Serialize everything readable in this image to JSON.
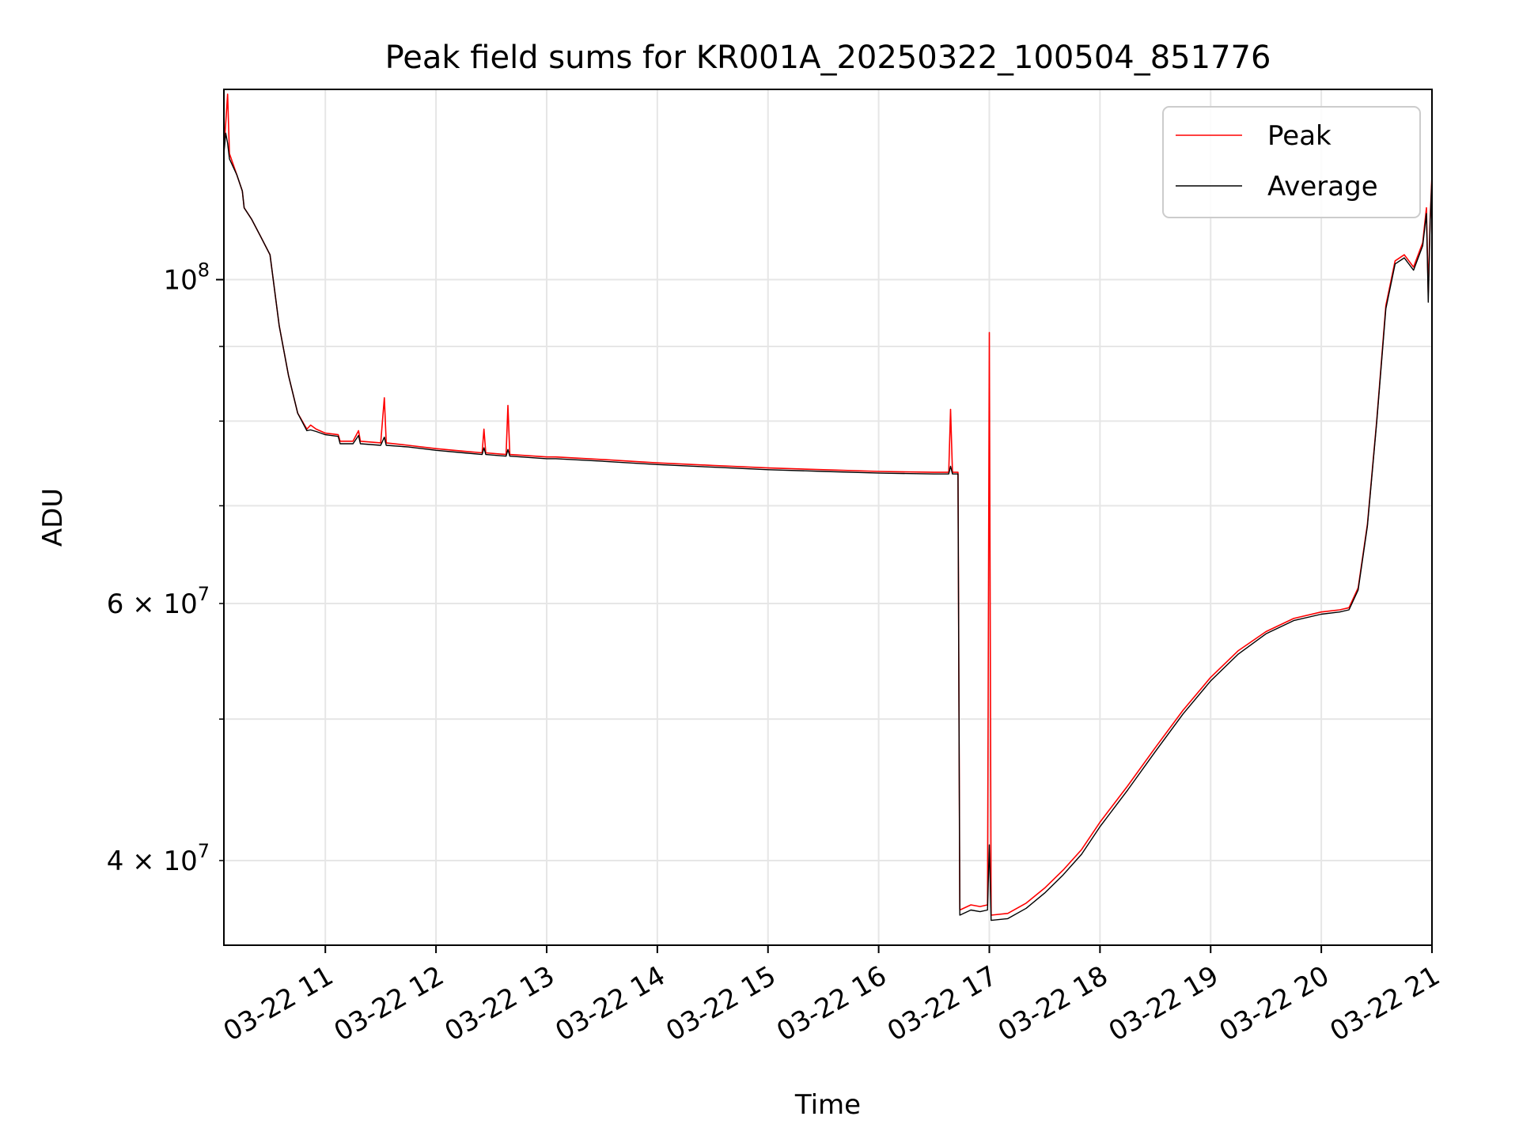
{
  "chart_data": {
    "type": "line",
    "title": "Peak field sums for KR001A_20250322_100504_851776",
    "xlabel": "Time",
    "ylabel": "ADU",
    "yscale": "log",
    "xlim": [
      "03-22 10:05",
      "03-22 21:00"
    ],
    "ylim": [
      35000000,
      135000000
    ],
    "x_ticks": [
      "03-22 11",
      "03-22 12",
      "03-22 13",
      "03-22 14",
      "03-22 15",
      "03-22 16",
      "03-22 17",
      "03-22 18",
      "03-22 19",
      "03-22 20",
      "03-22 21"
    ],
    "y_major_ticks": [
      {
        "value": 100000000,
        "base": "10",
        "exp": "8"
      }
    ],
    "y_minor_ticks": [
      {
        "value": 40000000,
        "mant": "4",
        "base": "10",
        "exp": "7"
      },
      {
        "value": 60000000,
        "mant": "6",
        "base": "10",
        "exp": "7"
      }
    ],
    "grid": true,
    "legend_position": "upper right",
    "series": [
      {
        "name": "Peak",
        "color": "#ff0000",
        "points": [
          [
            "10:05",
            123000000
          ],
          [
            "10:06",
            128000000
          ],
          [
            "10:07",
            134000000
          ],
          [
            "10:08",
            122000000
          ],
          [
            "10:12",
            118000000
          ],
          [
            "10:15",
            115000000
          ],
          [
            "10:16",
            112000000
          ],
          [
            "10:20",
            110000000
          ],
          [
            "10:25",
            107000000
          ],
          [
            "10:30",
            104000000
          ],
          [
            "10:35",
            93000000
          ],
          [
            "10:40",
            86000000
          ],
          [
            "10:45",
            81000000
          ],
          [
            "10:50",
            79000000
          ],
          [
            "10:52",
            79500000
          ],
          [
            "10:55",
            79000000
          ],
          [
            "11:00",
            78500000
          ],
          [
            "11:07",
            78300000
          ],
          [
            "11:08",
            77500000
          ],
          [
            "11:15",
            77500000
          ],
          [
            "11:18",
            78800000
          ],
          [
            "11:19",
            77500000
          ],
          [
            "11:30",
            77300000
          ],
          [
            "11:32",
            83000000
          ],
          [
            "11:33",
            77300000
          ],
          [
            "11:45",
            77000000
          ],
          [
            "12:00",
            76600000
          ],
          [
            "12:15",
            76300000
          ],
          [
            "12:25",
            76100000
          ],
          [
            "12:26",
            79000000
          ],
          [
            "12:27",
            76100000
          ],
          [
            "12:38",
            75900000
          ],
          [
            "12:39",
            82000000
          ],
          [
            "12:40",
            75900000
          ],
          [
            "13:00",
            75600000
          ],
          [
            "13:05",
            75600000
          ],
          [
            "13:30",
            75300000
          ],
          [
            "14:00",
            74900000
          ],
          [
            "14:30",
            74600000
          ],
          [
            "15:00",
            74300000
          ],
          [
            "15:30",
            74100000
          ],
          [
            "16:00",
            73900000
          ],
          [
            "16:30",
            73800000
          ],
          [
            "16:38",
            73800000
          ],
          [
            "16:39",
            81500000
          ],
          [
            "16:40",
            73800000
          ],
          [
            "16:43",
            73800000
          ],
          [
            "16:44",
            37000000
          ],
          [
            "16:50",
            37300000
          ],
          [
            "16:55",
            37200000
          ],
          [
            "16:59",
            37300000
          ],
          [
            "17:00",
            92000000
          ],
          [
            "17:01",
            36700000
          ],
          [
            "17:10",
            36800000
          ],
          [
            "17:20",
            37400000
          ],
          [
            "17:30",
            38300000
          ],
          [
            "17:40",
            39400000
          ],
          [
            "17:50",
            40700000
          ],
          [
            "18:00",
            42500000
          ],
          [
            "18:15",
            45000000
          ],
          [
            "18:30",
            47800000
          ],
          [
            "18:45",
            50700000
          ],
          [
            "19:00",
            53400000
          ],
          [
            "19:15",
            55700000
          ],
          [
            "19:30",
            57400000
          ],
          [
            "19:45",
            58600000
          ],
          [
            "20:00",
            59200000
          ],
          [
            "20:10",
            59400000
          ],
          [
            "20:15",
            59600000
          ],
          [
            "20:20",
            61500000
          ],
          [
            "20:25",
            68000000
          ],
          [
            "20:30",
            80000000
          ],
          [
            "20:35",
            96000000
          ],
          [
            "20:40",
            103000000
          ],
          [
            "20:45",
            104000000
          ],
          [
            "20:50",
            102000000
          ],
          [
            "20:55",
            106000000
          ],
          [
            "20:57",
            112000000
          ],
          [
            "20:58",
            98000000
          ],
          [
            "20:59",
            110000000
          ],
          [
            "21:00",
            118000000
          ]
        ]
      },
      {
        "name": "Average",
        "color": "#000000",
        "points": [
          [
            "10:05",
            122000000
          ],
          [
            "10:06",
            126000000
          ],
          [
            "10:07",
            124000000
          ],
          [
            "10:08",
            121000000
          ],
          [
            "10:12",
            118000000
          ],
          [
            "10:15",
            115000000
          ],
          [
            "10:16",
            112000000
          ],
          [
            "10:20",
            110000000
          ],
          [
            "10:25",
            107000000
          ],
          [
            "10:30",
            104000000
          ],
          [
            "10:35",
            93000000
          ],
          [
            "10:40",
            86000000
          ],
          [
            "10:45",
            81000000
          ],
          [
            "10:50",
            78800000
          ],
          [
            "10:52",
            78900000
          ],
          [
            "10:55",
            78700000
          ],
          [
            "11:00",
            78300000
          ],
          [
            "11:07",
            78100000
          ],
          [
            "11:08",
            77200000
          ],
          [
            "11:15",
            77200000
          ],
          [
            "11:18",
            78200000
          ],
          [
            "11:19",
            77200000
          ],
          [
            "11:30",
            77000000
          ],
          [
            "11:32",
            78000000
          ],
          [
            "11:33",
            77000000
          ],
          [
            "11:45",
            76800000
          ],
          [
            "12:00",
            76400000
          ],
          [
            "12:15",
            76100000
          ],
          [
            "12:25",
            75900000
          ],
          [
            "12:26",
            76700000
          ],
          [
            "12:27",
            75900000
          ],
          [
            "12:38",
            75700000
          ],
          [
            "12:39",
            76500000
          ],
          [
            "12:40",
            75700000
          ],
          [
            "13:00",
            75400000
          ],
          [
            "13:05",
            75400000
          ],
          [
            "13:30",
            75100000
          ],
          [
            "14:00",
            74700000
          ],
          [
            "14:30",
            74400000
          ],
          [
            "15:00",
            74100000
          ],
          [
            "15:30",
            73900000
          ],
          [
            "16:00",
            73700000
          ],
          [
            "16:30",
            73600000
          ],
          [
            "16:38",
            73600000
          ],
          [
            "16:39",
            74500000
          ],
          [
            "16:40",
            73600000
          ],
          [
            "16:43",
            73600000
          ],
          [
            "16:44",
            36700000
          ],
          [
            "16:50",
            37000000
          ],
          [
            "16:55",
            36900000
          ],
          [
            "16:59",
            37000000
          ],
          [
            "17:00",
            41000000
          ],
          [
            "17:01",
            36400000
          ],
          [
            "17:10",
            36500000
          ],
          [
            "17:20",
            37100000
          ],
          [
            "17:30",
            38000000
          ],
          [
            "17:40",
            39100000
          ],
          [
            "17:50",
            40400000
          ],
          [
            "18:00",
            42200000
          ],
          [
            "18:15",
            44700000
          ],
          [
            "18:30",
            47500000
          ],
          [
            "18:45",
            50400000
          ],
          [
            "19:00",
            53100000
          ],
          [
            "19:15",
            55400000
          ],
          [
            "19:30",
            57200000
          ],
          [
            "19:45",
            58400000
          ],
          [
            "20:00",
            59000000
          ],
          [
            "20:10",
            59200000
          ],
          [
            "20:15",
            59400000
          ],
          [
            "20:20",
            61300000
          ],
          [
            "20:25",
            67800000
          ],
          [
            "20:30",
            79800000
          ],
          [
            "20:35",
            95500000
          ],
          [
            "20:40",
            102500000
          ],
          [
            "20:45",
            103500000
          ],
          [
            "20:50",
            101500000
          ],
          [
            "20:55",
            105500000
          ],
          [
            "20:57",
            111000000
          ],
          [
            "20:58",
            96500000
          ],
          [
            "20:59",
            109500000
          ],
          [
            "21:00",
            117500000
          ]
        ]
      }
    ]
  }
}
